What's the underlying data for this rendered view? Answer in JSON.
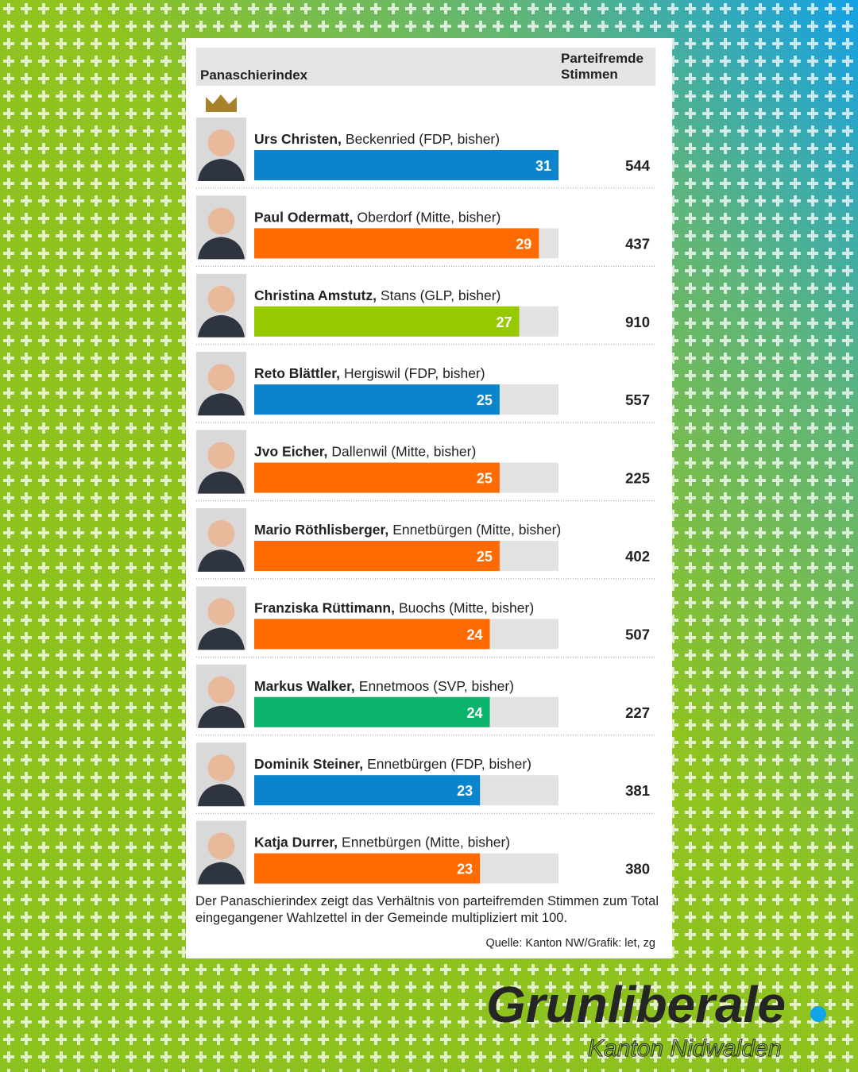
{
  "chart_data": {
    "type": "bar",
    "header_left": "Panaschierindex",
    "header_right": "Parteifremde Stimmen",
    "names": [
      "Urs Christen,",
      "Paul Odermatt,",
      "Christina Amstutz,",
      "Reto Blättler,",
      "Jvo Eicher,",
      "Mario Röthlisberger,",
      "Franziska Rüttimann,",
      "Markus Walker,",
      "Dominik Steiner,",
      "Katja Durrer,"
    ],
    "details": [
      "Beckenried (FDP, bisher)",
      "Oberdorf (Mitte, bisher)",
      "Stans (GLP, bisher)",
      "Hergiswil (FDP, bisher)",
      "Dallenwil (Mitte, bisher)",
      "Ennetbürgen (Mitte, bisher)",
      "Buochs (Mitte, bisher)",
      "Ennetmoos (SVP, bisher)",
      "Ennetbürgen (FDP, bisher)",
      "Ennetbürgen (Mitte, bisher)"
    ],
    "values": [
      31,
      29,
      27,
      25,
      25,
      25,
      24,
      24,
      23,
      23
    ],
    "colors": [
      "#0a84cc",
      "#ff6b00",
      "#97c900",
      "#0a84cc",
      "#ff6b00",
      "#ff6b00",
      "#ff6b00",
      "#0bb46a",
      "#0a84cc",
      "#ff6b00"
    ],
    "votes": [
      544,
      437,
      910,
      557,
      225,
      402,
      507,
      227,
      381,
      380
    ],
    "xlim": [
      0,
      31
    ],
    "footnote": "Der Panaschierindex zeigt das Verhältnis von parteifremden Stimmen zum Total eingegangener Wahlzettel in der Gemeinde multipliziert mit 100.",
    "source": "Quelle: Kanton NW/Grafik: let, zg"
  },
  "logo": {
    "title": "Grunliberale",
    "subtitle": "Kanton Nidwalden"
  }
}
